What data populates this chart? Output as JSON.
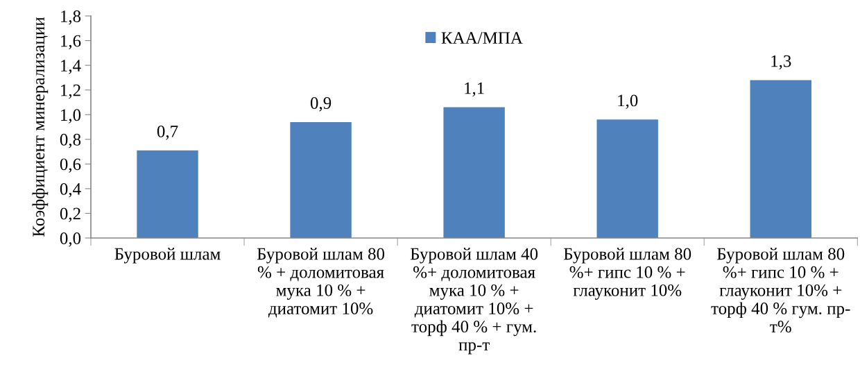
{
  "chart_data": {
    "type": "bar",
    "ylabel": "Коэффициент минерализации",
    "categories": [
      "Буровой шлам",
      "Буровой шлам 80\n% + доломитовая\nмука 10 % +\nдиатомит 10%",
      "Буровой шлам 40\n%+ доломитовая\nмука 10 % +\nдиатомит 10% +\nторф 40 % + гум.\nпр-т",
      "Буровой шлам 80\n%+ гипс 10 % +\nглауконит 10%",
      "Буровой шлам 80\n%+ гипс 10 % +\nглауконит 10% +\nторф 40 % гум. пр-\nт%"
    ],
    "series": [
      {
        "name": "КАА/МПА",
        "color": "#4f81bd",
        "values": [
          0.71,
          0.94,
          1.06,
          0.96,
          1.28
        ],
        "value_labels": [
          "0,7",
          "0,9",
          "1,1",
          "1,0",
          "1,3"
        ]
      }
    ],
    "ylim": [
      0,
      1.8
    ],
    "yticks": [
      {
        "value": 0,
        "label": "0,0"
      },
      {
        "value": 0.2,
        "label": "0,2"
      },
      {
        "value": 0.4,
        "label": "0,4"
      },
      {
        "value": 0.6,
        "label": "0,6"
      },
      {
        "value": 0.8,
        "label": "0,8"
      },
      {
        "value": 1.0,
        "label": "1,0"
      },
      {
        "value": 1.2,
        "label": "1,2"
      },
      {
        "value": 1.4,
        "label": "1,4"
      },
      {
        "value": 1.6,
        "label": "1,6"
      },
      {
        "value": 1.8,
        "label": "1,8"
      }
    ],
    "legend": "top"
  }
}
